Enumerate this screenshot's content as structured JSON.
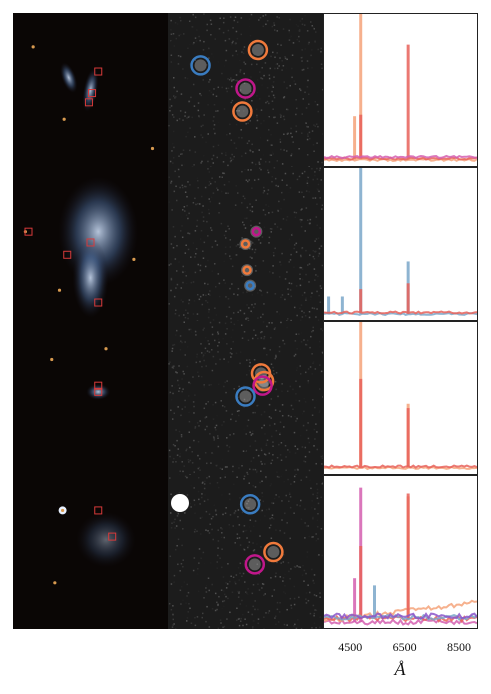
{
  "colors": {
    "ring_orange": "#f07a3c",
    "ring_magenta": "#c0178a",
    "ring_blue": "#3a7cc0",
    "spec_orange": "#f5a37a",
    "spec_red": "#e8615a",
    "spec_blue": "#7ba7c9",
    "spec_pink": "#d45fb0",
    "spec_purple": "#8b55c9",
    "marker_red": "#d83a3a"
  },
  "rows": [
    {
      "optical": {
        "galaxy": "pair",
        "markers": [
          [
            0.55,
            0.38
          ],
          [
            0.51,
            0.52
          ],
          [
            0.49,
            0.58
          ]
        ],
        "stars": [
          [
            0.13,
            0.22
          ],
          [
            0.9,
            0.88
          ],
          [
            0.33,
            0.69
          ]
        ]
      },
      "rings": [
        {
          "color": "ring_orange",
          "at": [
            0.58,
            0.24
          ]
        },
        {
          "color": "ring_magenta",
          "at": [
            0.5,
            0.49
          ]
        },
        {
          "color": "ring_orange",
          "at": [
            0.48,
            0.64
          ]
        },
        {
          "color": "ring_blue",
          "at": [
            0.21,
            0.34
          ]
        }
      ],
      "spectra": [
        {
          "color": "spec_orange",
          "lines": [
            [
              0.24,
              1.0
            ],
            [
              0.2,
              0.3
            ]
          ]
        },
        {
          "color": "spec_red",
          "lines": [
            [
              0.55,
              0.78
            ],
            [
              0.24,
              0.3
            ]
          ]
        },
        {
          "color": "spec_pink",
          "lines": []
        }
      ]
    },
    {
      "optical": {
        "galaxy": "spiral",
        "markers": [
          [
            0.1,
            0.42
          ],
          [
            0.35,
            0.57
          ],
          [
            0.5,
            0.49
          ],
          [
            0.55,
            0.88
          ]
        ],
        "stars": [
          [
            0.08,
            0.42
          ],
          [
            0.78,
            0.6
          ],
          [
            0.3,
            0.8
          ]
        ]
      },
      "rings": [
        {
          "color": "ring_magenta",
          "at": [
            0.57,
            0.42
          ]
        },
        {
          "color": "ring_orange",
          "at": [
            0.5,
            0.5
          ]
        },
        {
          "color": "ring_orange",
          "at": [
            0.51,
            0.67
          ]
        },
        {
          "color": "ring_blue",
          "at": [
            0.53,
            0.77
          ]
        }
      ],
      "spectra": [
        {
          "color": "spec_blue",
          "lines": [
            [
              0.24,
              1.0
            ],
            [
              0.03,
              0.12
            ],
            [
              0.12,
              0.12
            ],
            [
              0.55,
              0.36
            ]
          ]
        },
        {
          "color": "spec_red",
          "lines": [
            [
              0.55,
              0.2
            ],
            [
              0.24,
              0.16
            ]
          ]
        }
      ]
    },
    {
      "optical": {
        "galaxy": "small",
        "markers": [
          [
            0.55,
            0.42
          ],
          [
            0.55,
            0.46
          ]
        ],
        "stars": [
          [
            0.25,
            0.25
          ],
          [
            0.6,
            0.18
          ]
        ]
      },
      "rings": [
        {
          "color": "ring_orange",
          "at": [
            0.6,
            0.34
          ]
        },
        {
          "color": "ring_orange",
          "at": [
            0.62,
            0.39
          ]
        },
        {
          "color": "ring_magenta",
          "at": [
            0.61,
            0.42
          ]
        },
        {
          "color": "ring_blue",
          "at": [
            0.5,
            0.49
          ]
        }
      ],
      "spectra": [
        {
          "color": "spec_orange",
          "lines": [
            [
              0.24,
              1.0
            ],
            [
              0.55,
              0.44
            ]
          ]
        },
        {
          "color": "spec_red",
          "lines": [
            [
              0.24,
              0.6
            ],
            [
              0.55,
              0.4
            ]
          ]
        }
      ]
    },
    {
      "optical": {
        "galaxy": "faint",
        "markers": [
          [
            0.55,
            0.23
          ],
          [
            0.64,
            0.4
          ]
        ],
        "stars": [
          [
            0.32,
            0.23
          ],
          [
            0.27,
            0.7
          ]
        ]
      },
      "rings": [
        {
          "color": "ring_blue",
          "at": [
            0.53,
            0.19
          ]
        },
        {
          "color": "ring_orange",
          "at": [
            0.68,
            0.5
          ]
        },
        {
          "color": "ring_magenta",
          "at": [
            0.56,
            0.58
          ]
        }
      ],
      "spectra": [
        {
          "color": "spec_pink",
          "lines": [
            [
              0.24,
              0.92
            ],
            [
              0.2,
              0.3
            ]
          ]
        },
        {
          "color": "spec_orange",
          "lines": [
            [
              0.55,
              0.85
            ]
          ]
        },
        {
          "color": "spec_red",
          "lines": [
            [
              0.55,
              0.86
            ],
            [
              0.24,
              0.5
            ]
          ]
        },
        {
          "color": "spec_blue",
          "lines": [
            [
              0.33,
              0.22
            ]
          ]
        },
        {
          "color": "spec_purple",
          "lines": []
        }
      ]
    }
  ],
  "xaxis": {
    "min": 3500,
    "max": 9200,
    "ticks": [
      {
        "value": 4500,
        "label": "4500"
      },
      {
        "value": 6500,
        "label": "6500"
      },
      {
        "value": 8500,
        "label": "8500"
      }
    ],
    "unit_label": "Å"
  }
}
